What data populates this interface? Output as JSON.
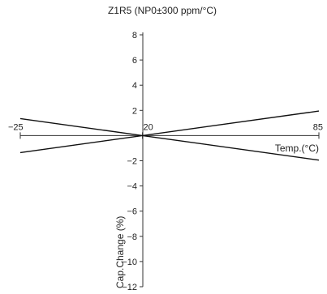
{
  "chart_data": {
    "type": "line",
    "title": "Z1R5 (NP0±300 ppm/°C)",
    "xlabel": "Temp.(°C)",
    "ylabel": "Cap.Change (%)",
    "x_ticks": [
      -25,
      20,
      85
    ],
    "y_ticks": [
      8,
      6,
      4,
      2,
      -2,
      -4,
      -6,
      -8,
      -10,
      -12
    ],
    "xlim": [
      -25,
      85
    ],
    "ylim": [
      -12,
      8
    ],
    "series": [
      {
        "x": [
          -25,
          20,
          85
        ],
        "y": [
          1.35,
          0,
          -1.95
        ]
      },
      {
        "x": [
          -25,
          20,
          85
        ],
        "y": [
          -1.35,
          0,
          1.95
        ]
      }
    ],
    "grid": false,
    "line_color": "#111111"
  }
}
